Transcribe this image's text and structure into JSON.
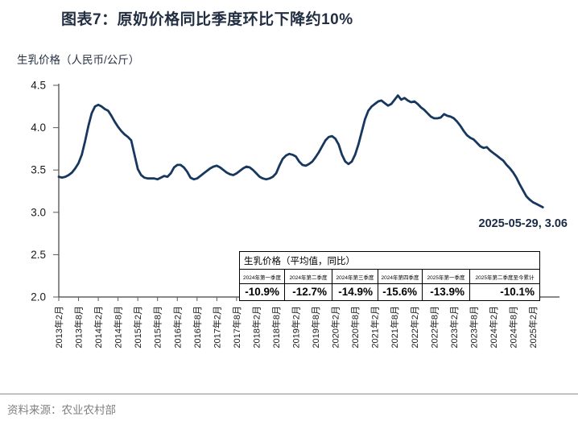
{
  "title": "图表7：原奶价格同比季度环比下降约10%",
  "y_axis_caption": "生乳价格（人民币/公斤）",
  "annotation_label": "2025-05-29,  3.06",
  "source": "资料来源：农业农村部",
  "colors": {
    "line": "#17375e",
    "axis": "#404040",
    "tick": "#595959",
    "tick_label": "#1a1a1a",
    "title": "#222e42",
    "source_text": "#808080"
  },
  "inset_table": {
    "caption": "生乳价格（平均值，同比）",
    "columns": [
      "2024年第一季度",
      "2024年第二季度",
      "2024年第三季度",
      "2024年第四季度",
      "2025年第一季度",
      "2025年第二季度至今累计"
    ],
    "values": [
      "-10.9%",
      "-12.7%",
      "-14.9%",
      "-15.6%",
      "-13.9%",
      "-10.1%"
    ]
  },
  "chart_data": {
    "type": "line",
    "title": "生乳价格（人民币/公斤）",
    "xlabel": "",
    "ylabel": "元/公斤",
    "ylim": [
      2.0,
      4.5
    ],
    "y_ticks": [
      4.5,
      4.0,
      3.5,
      3.0,
      2.5,
      2.0
    ],
    "grid": false,
    "legend": "none",
    "x_start": "2013-02",
    "x_end": "2025-05",
    "x_interval": "monthly",
    "x_tick_labels": [
      "2013年2月",
      "2013年8月",
      "2014年2月",
      "2014年8月",
      "2015年2月",
      "2015年8月",
      "2016年2月",
      "2016年8月",
      "2017年2月",
      "2017年8月",
      "2018年2月",
      "2018年8月",
      "2019年2月",
      "2019年8月",
      "2020年2月",
      "2020年8月",
      "2021年2月",
      "2021年8月",
      "2022年2月",
      "2022年8月",
      "2023年2月",
      "2023年8月",
      "2024年2月",
      "2024年8月",
      "2025年2月"
    ],
    "series": [
      {
        "name": "生乳价格",
        "values": [
          3.42,
          3.41,
          3.42,
          3.44,
          3.47,
          3.52,
          3.58,
          3.68,
          3.84,
          4.02,
          4.17,
          4.25,
          4.27,
          4.25,
          4.22,
          4.2,
          4.14,
          4.07,
          4.01,
          3.96,
          3.92,
          3.89,
          3.85,
          3.68,
          3.51,
          3.44,
          3.41,
          3.4,
          3.4,
          3.4,
          3.39,
          3.41,
          3.43,
          3.42,
          3.46,
          3.53,
          3.56,
          3.56,
          3.53,
          3.48,
          3.41,
          3.39,
          3.4,
          3.43,
          3.46,
          3.49,
          3.52,
          3.54,
          3.55,
          3.53,
          3.5,
          3.47,
          3.45,
          3.44,
          3.46,
          3.49,
          3.52,
          3.54,
          3.53,
          3.5,
          3.46,
          3.42,
          3.4,
          3.39,
          3.4,
          3.42,
          3.46,
          3.55,
          3.63,
          3.67,
          3.69,
          3.68,
          3.66,
          3.6,
          3.56,
          3.55,
          3.57,
          3.6,
          3.65,
          3.71,
          3.78,
          3.85,
          3.89,
          3.9,
          3.87,
          3.8,
          3.68,
          3.6,
          3.57,
          3.6,
          3.68,
          3.8,
          3.95,
          4.1,
          4.2,
          4.25,
          4.28,
          4.31,
          4.32,
          4.29,
          4.26,
          4.28,
          4.33,
          4.38,
          4.33,
          4.35,
          4.32,
          4.3,
          4.31,
          4.28,
          4.24,
          4.21,
          4.17,
          4.13,
          4.11,
          4.11,
          4.12,
          4.16,
          4.14,
          4.13,
          4.11,
          4.07,
          4.02,
          3.96,
          3.91,
          3.88,
          3.86,
          3.82,
          3.78,
          3.76,
          3.77,
          3.73,
          3.7,
          3.67,
          3.64,
          3.61,
          3.56,
          3.52,
          3.47,
          3.41,
          3.33,
          3.26,
          3.19,
          3.15,
          3.12,
          3.1,
          3.08,
          3.06
        ]
      }
    ],
    "annotation_point": {
      "date": "2025-05-29",
      "value": 3.06
    }
  }
}
